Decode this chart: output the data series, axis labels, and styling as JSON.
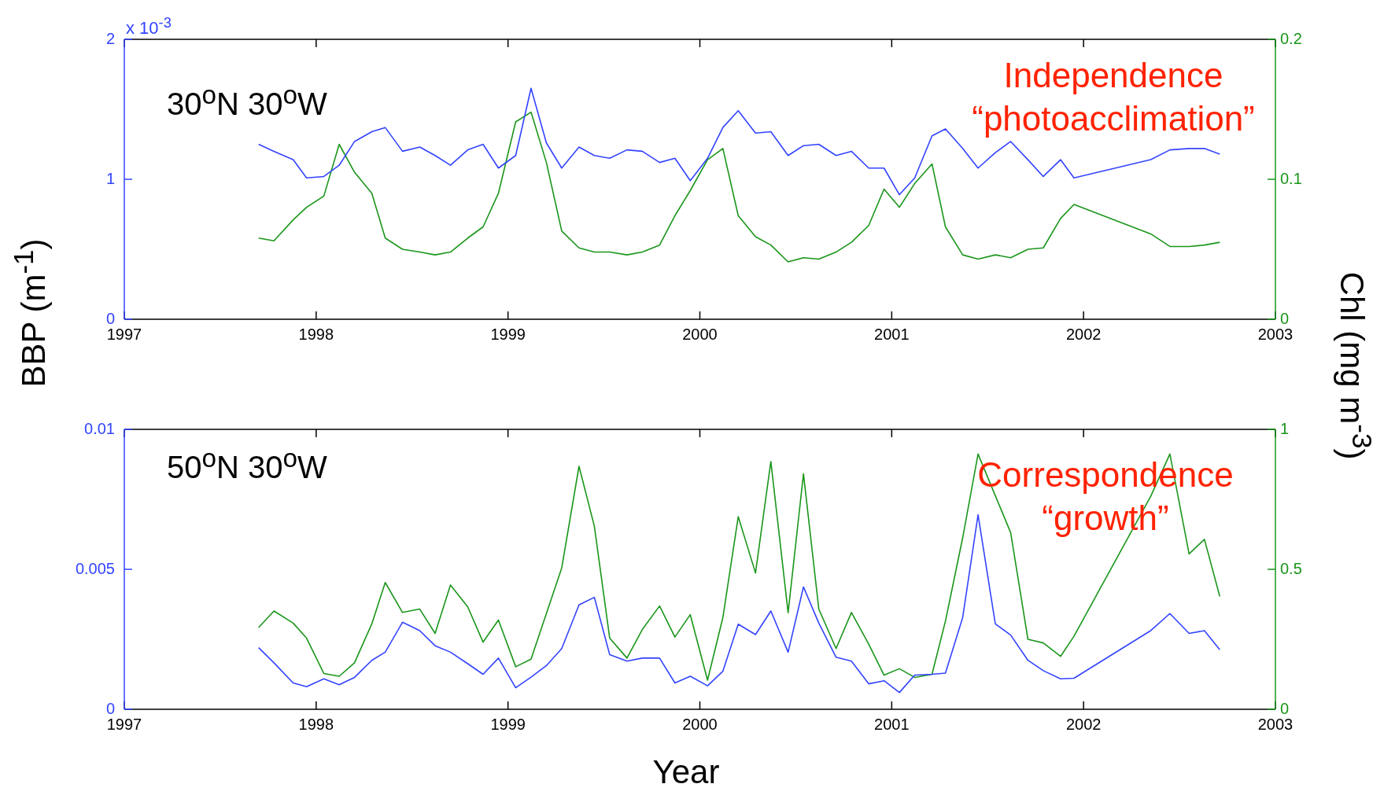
{
  "chart_data": [
    {
      "type": "line",
      "ylabel": "BBP (m$^{-1}$)",
      "y2label": "Chl (mg m$^{-3}$)",
      "annotations": [
        "x 10$^{-3}$",
        "30$^{o}$N 30$^{o}$W",
        "Independence\n“photoacclimation”"
      ],
      "x": [
        1997.7,
        1997.78,
        1997.88,
        1997.95,
        1998.04,
        1998.12,
        1998.2,
        1998.29,
        1998.36,
        1998.45,
        1998.54,
        1998.62,
        1998.7,
        1998.79,
        1998.87,
        1998.95,
        1999.04,
        1999.12,
        1999.2,
        1999.28,
        1999.37,
        1999.45,
        1999.53,
        1999.62,
        1999.7,
        1999.79,
        1999.87,
        1999.95,
        2000.04,
        2000.12,
        2000.2,
        2000.29,
        2000.37,
        2000.46,
        2000.54,
        2000.62,
        2000.71,
        2000.79,
        2000.88,
        2000.96,
        2001.04,
        2001.12,
        2001.21,
        2001.28,
        2001.37,
        2001.45,
        2001.54,
        2001.62,
        2001.71,
        2001.79,
        2001.88,
        2001.95,
        2002.35,
        2002.45,
        2002.55,
        2002.63,
        2002.71
      ],
      "series": [
        {
          "color": "#3344ff",
          "values": [
            1.25,
            1.2,
            1.14,
            1.01,
            1.02,
            1.1,
            1.27,
            1.34,
            1.37,
            1.2,
            1.23,
            1.17,
            1.1,
            1.21,
            1.25,
            1.08,
            1.17,
            1.65,
            1.26,
            1.08,
            1.23,
            1.17,
            1.15,
            1.21,
            1.2,
            1.12,
            1.15,
            0.99,
            1.15,
            1.37,
            1.49,
            1.33,
            1.34,
            1.17,
            1.24,
            1.25,
            1.17,
            1.2,
            1.08,
            1.08,
            0.89,
            1.01,
            1.31,
            1.36,
            1.22,
            1.08,
            1.19,
            1.27,
            1.14,
            1.02,
            1.14,
            1.01,
            1.14,
            1.21,
            1.22,
            1.22,
            1.18
          ]
        },
        {
          "color": "#1a961a",
          "axis": "y2",
          "values": [
            0.058,
            0.056,
            0.071,
            0.08,
            0.088,
            0.125,
            0.105,
            0.09,
            0.058,
            0.05,
            0.048,
            0.046,
            0.048,
            0.058,
            0.066,
            0.09,
            0.141,
            0.148,
            0.112,
            0.063,
            0.051,
            0.048,
            0.048,
            0.046,
            0.048,
            0.053,
            0.074,
            0.092,
            0.114,
            0.122,
            0.074,
            0.059,
            0.053,
            0.041,
            0.044,
            0.043,
            0.048,
            0.055,
            0.067,
            0.093,
            0.08,
            0.097,
            0.111,
            0.066,
            0.046,
            0.043,
            0.046,
            0.044,
            0.05,
            0.051,
            0.072,
            0.082,
            0.061,
            0.052,
            0.052,
            0.053,
            0.055
          ]
        }
      ],
      "xlim": [
        1997,
        2003
      ],
      "xticks": [
        1997,
        1998,
        1999,
        2000,
        2001,
        2002,
        2003
      ],
      "ylim": [
        0,
        2
      ],
      "yticks": [
        0,
        1,
        2
      ],
      "y2lim": [
        0,
        0.2
      ],
      "y2ticks": [
        0,
        0.1,
        0.2
      ],
      "legend": false,
      "marker": "none"
    },
    {
      "type": "line",
      "xlabel": "Year",
      "annotations": [
        "50$^{o}$N 30$^{o}$W",
        "Correspondence\n“growth”"
      ],
      "x": [
        1997.7,
        1997.78,
        1997.88,
        1997.95,
        1998.04,
        1998.12,
        1998.2,
        1998.29,
        1998.36,
        1998.45,
        1998.54,
        1998.62,
        1998.7,
        1998.79,
        1998.87,
        1998.95,
        1999.04,
        1999.12,
        1999.2,
        1999.28,
        1999.37,
        1999.45,
        1999.53,
        1999.62,
        1999.7,
        1999.79,
        1999.87,
        1999.95,
        2000.04,
        2000.12,
        2000.2,
        2000.29,
        2000.37,
        2000.46,
        2000.54,
        2000.62,
        2000.71,
        2000.79,
        2000.88,
        2000.96,
        2001.04,
        2001.12,
        2001.21,
        2001.28,
        2001.37,
        2001.45,
        2001.54,
        2001.62,
        2001.71,
        2001.79,
        2001.88,
        2001.95,
        2002.35,
        2002.45,
        2002.55,
        2002.63,
        2002.71
      ],
      "series": [
        {
          "color": "#3344ff",
          "values": [
            0.0022,
            0.00166,
            0.00094,
            0.00081,
            0.00109,
            0.00088,
            0.00114,
            0.00175,
            0.00204,
            0.00311,
            0.00281,
            0.00227,
            0.00204,
            0.00163,
            0.00125,
            0.00183,
            0.00077,
            0.00115,
            0.00156,
            0.00217,
            0.00373,
            0.004,
            0.00195,
            0.00172,
            0.00183,
            0.00183,
            0.00094,
            0.00118,
            0.00084,
            0.00136,
            0.00304,
            0.00267,
            0.00351,
            0.00204,
            0.00437,
            0.00308,
            0.00186,
            0.00172,
            0.00091,
            0.00102,
            0.0006,
            0.00122,
            0.00125,
            0.00129,
            0.00328,
            0.00695,
            0.00305,
            0.00265,
            0.00175,
            0.00138,
            0.00109,
            0.00111,
            0.00281,
            0.00342,
            0.00271,
            0.00281,
            0.00213
          ]
        },
        {
          "color": "#1a961a",
          "axis": "y2",
          "values": [
            0.292,
            0.351,
            0.308,
            0.254,
            0.128,
            0.118,
            0.166,
            0.305,
            0.453,
            0.346,
            0.358,
            0.271,
            0.444,
            0.366,
            0.24,
            0.319,
            0.152,
            0.179,
            0.342,
            0.505,
            0.868,
            0.654,
            0.254,
            0.183,
            0.285,
            0.369,
            0.258,
            0.338,
            0.104,
            0.328,
            0.688,
            0.487,
            0.885,
            0.345,
            0.841,
            0.358,
            0.217,
            0.346,
            0.233,
            0.122,
            0.145,
            0.114,
            0.125,
            0.315,
            0.613,
            0.912,
            0.763,
            0.631,
            0.25,
            0.237,
            0.189,
            0.261,
            0.761,
            0.912,
            0.555,
            0.607,
            0.403
          ]
        }
      ],
      "xlim": [
        1997,
        2003
      ],
      "xticks": [
        1997,
        1998,
        1999,
        2000,
        2001,
        2002,
        2003
      ],
      "ylim": [
        0,
        0.01
      ],
      "yticks": [
        0,
        0.005,
        0.01
      ],
      "y2lim": [
        0,
        1
      ],
      "y2ticks": [
        0,
        0.5,
        1
      ],
      "legend": false,
      "marker": "none"
    }
  ]
}
